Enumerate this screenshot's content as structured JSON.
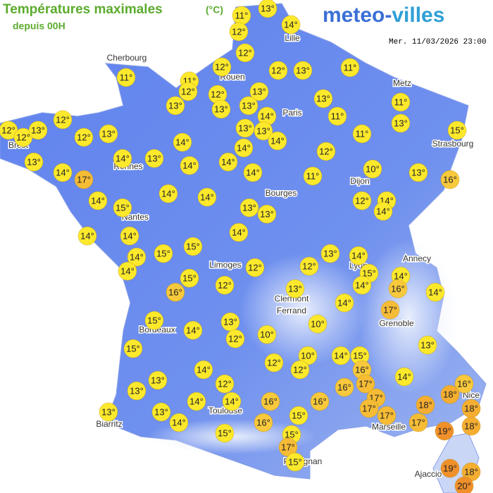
{
  "header": {
    "title": "Températures maximales",
    "unit": "(°C)",
    "subtitle": "depuis 00H",
    "logo_left": "meteo-",
    "logo_right": "villes",
    "timestamp": "Mer. 11/03/2026 23:00"
  },
  "cities": [
    "Lille",
    "Cherbourg",
    "Rouen",
    "Metz",
    "Paris",
    "Brest",
    "Strasbourg",
    "Rennes",
    "Dijon",
    "Bourges",
    "Nantes",
    "Annecy",
    "Limoges",
    "Lyon",
    "Clermont",
    "Ferrand",
    "Grenoble",
    "Bordeaux",
    "Nice",
    "Toulouse",
    "Biarritz",
    "Marseille",
    "Perpignan",
    "Ajaccio"
  ],
  "markers": [
    {
      "value": 11,
      "label": "11°"
    },
    {
      "value": 13,
      "label": "13°"
    },
    {
      "value": 12,
      "label": "12°"
    },
    {
      "value": 14,
      "label": "14°"
    },
    {
      "value": 12,
      "label": "12°"
    },
    {
      "value": 11,
      "label": "11°"
    },
    {
      "value": 11,
      "label": "11°"
    },
    {
      "value": 12,
      "label": "12°"
    },
    {
      "value": 12,
      "label": "12°"
    },
    {
      "value": 12,
      "label": "12°"
    },
    {
      "value": 13,
      "label": "13°"
    },
    {
      "value": 11,
      "label": "11°"
    },
    {
      "value": 12,
      "label": "12°"
    },
    {
      "value": 13,
      "label": "13°"
    },
    {
      "value": 13,
      "label": "13°"
    },
    {
      "value": 13,
      "label": "13°"
    },
    {
      "value": 13,
      "label": "13°"
    },
    {
      "value": 13,
      "label": "13°"
    },
    {
      "value": 14,
      "label": "14°"
    },
    {
      "value": 11,
      "label": "11°"
    },
    {
      "value": 11,
      "label": "11°"
    },
    {
      "value": 13,
      "label": "13°"
    },
    {
      "value": 12,
      "label": "12°"
    },
    {
      "value": 12,
      "label": "12°"
    },
    {
      "value": 12,
      "label": "12°"
    },
    {
      "value": 13,
      "label": "13°"
    },
    {
      "value": 12,
      "label": "12°"
    },
    {
      "value": 13,
      "label": "13°"
    },
    {
      "value": 13,
      "label": "13°"
    },
    {
      "value": 13,
      "label": "13°"
    },
    {
      "value": 14,
      "label": "14°"
    },
    {
      "value": 11,
      "label": "11°"
    },
    {
      "value": 15,
      "label": "15°"
    },
    {
      "value": 13,
      "label": "13°"
    },
    {
      "value": 14,
      "label": "14°"
    },
    {
      "value": 13,
      "label": "13°"
    },
    {
      "value": 14,
      "label": "14°"
    },
    {
      "value": 14,
      "label": "14°"
    },
    {
      "value": 12,
      "label": "12°"
    },
    {
      "value": 14,
      "label": "14°"
    },
    {
      "value": 17,
      "label": "17°"
    },
    {
      "value": 14,
      "label": "14°"
    },
    {
      "value": 14,
      "label": "14°"
    },
    {
      "value": 14,
      "label": "14°"
    },
    {
      "value": 11,
      "label": "11°"
    },
    {
      "value": 10,
      "label": "10°"
    },
    {
      "value": 13,
      "label": "13°"
    },
    {
      "value": 16,
      "label": "16°"
    },
    {
      "value": 14,
      "label": "14°"
    },
    {
      "value": 15,
      "label": "15°"
    },
    {
      "value": 14,
      "label": "14°"
    },
    {
      "value": 14,
      "label": "14°"
    },
    {
      "value": 13,
      "label": "13°"
    },
    {
      "value": 13,
      "label": "13°"
    },
    {
      "value": 12,
      "label": "12°"
    },
    {
      "value": 14,
      "label": "14°"
    },
    {
      "value": 14,
      "label": "14°"
    },
    {
      "value": 14,
      "label": "14°"
    },
    {
      "value": 14,
      "label": "14°"
    },
    {
      "value": 14,
      "label": "14°"
    },
    {
      "value": 14,
      "label": "14°"
    },
    {
      "value": 15,
      "label": "15°"
    },
    {
      "value": 15,
      "label": "15°"
    },
    {
      "value": 13,
      "label": "13°"
    },
    {
      "value": 14,
      "label": "14°"
    },
    {
      "value": 14,
      "label": "14°"
    },
    {
      "value": 12,
      "label": "12°"
    },
    {
      "value": 12,
      "label": "12°"
    },
    {
      "value": 15,
      "label": "15°"
    },
    {
      "value": 14,
      "label": "14°"
    },
    {
      "value": 14,
      "label": "14°"
    },
    {
      "value": 16,
      "label": "16°"
    },
    {
      "value": 14,
      "label": "14°"
    },
    {
      "value": 15,
      "label": "15°"
    },
    {
      "value": 16,
      "label": "16°"
    },
    {
      "value": 12,
      "label": "12°"
    },
    {
      "value": 13,
      "label": "13°"
    },
    {
      "value": 14,
      "label": "14°"
    },
    {
      "value": 17,
      "label": "17°"
    },
    {
      "value": 15,
      "label": "15°"
    },
    {
      "value": 14,
      "label": "14°"
    },
    {
      "value": 13,
      "label": "13°"
    },
    {
      "value": 12,
      "label": "12°"
    },
    {
      "value": 10,
      "label": "10°"
    },
    {
      "value": 10,
      "label": "10°"
    },
    {
      "value": 15,
      "label": "15°"
    },
    {
      "value": 10,
      "label": "10°"
    },
    {
      "value": 14,
      "label": "14°"
    },
    {
      "value": 15,
      "label": "15°"
    },
    {
      "value": 12,
      "label": "12°"
    },
    {
      "value": 12,
      "label": "12°"
    },
    {
      "value": 16,
      "label": "16°"
    },
    {
      "value": 13,
      "label": "13°"
    },
    {
      "value": 14,
      "label": "14°"
    },
    {
      "value": 13,
      "label": "13°"
    },
    {
      "value": 13,
      "label": "13°"
    },
    {
      "value": 12,
      "label": "12°"
    },
    {
      "value": 16,
      "label": "16°"
    },
    {
      "value": 17,
      "label": "17°"
    },
    {
      "value": 14,
      "label": "14°"
    },
    {
      "value": 16,
      "label": "16°"
    },
    {
      "value": 18,
      "label": "18°"
    },
    {
      "value": 13,
      "label": "13°"
    },
    {
      "value": 13,
      "label": "13°"
    },
    {
      "value": 14,
      "label": "14°"
    },
    {
      "value": 14,
      "label": "14°"
    },
    {
      "value": 16,
      "label": "16°"
    },
    {
      "value": 16,
      "label": "16°"
    },
    {
      "value": 17,
      "label": "17°"
    },
    {
      "value": 17,
      "label": "17°"
    },
    {
      "value": 18,
      "label": "18°"
    },
    {
      "value": 18,
      "label": "18°"
    },
    {
      "value": 14,
      "label": "14°"
    },
    {
      "value": 16,
      "label": "16°"
    },
    {
      "value": 15,
      "label": "15°"
    },
    {
      "value": 17,
      "label": "17°"
    },
    {
      "value": 17,
      "label": "17°"
    },
    {
      "value": 19,
      "label": "19°"
    },
    {
      "value": 18,
      "label": "18°"
    },
    {
      "value": 15,
      "label": "15°"
    },
    {
      "value": 15,
      "label": "15°"
    },
    {
      "value": 17,
      "label": "17°"
    },
    {
      "value": 15,
      "label": "15°"
    },
    {
      "value": 19,
      "label": "19°"
    },
    {
      "value": 18,
      "label": "18°"
    },
    {
      "value": 20,
      "label": "20°"
    }
  ]
}
